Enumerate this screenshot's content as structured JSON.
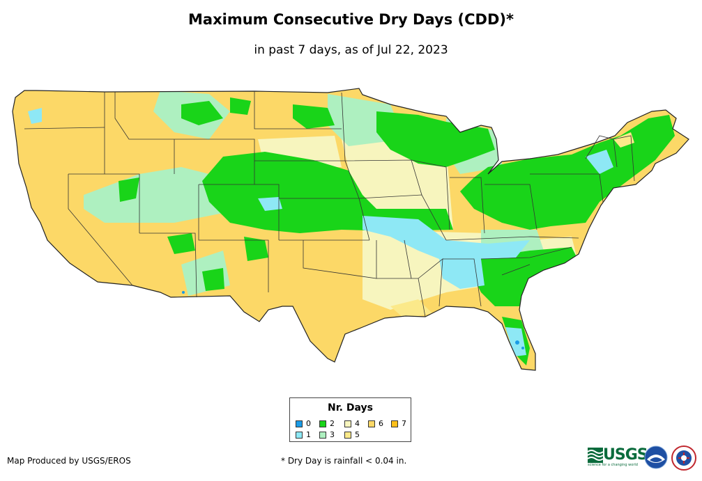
{
  "title": "Maximum Consecutive Dry Days (CDD)*",
  "subtitle": "in past 7 days, as of Jul 22, 2023",
  "legend": {
    "title": "Nr. Days",
    "items": [
      {
        "label": "0",
        "color": "#1a9be6"
      },
      {
        "label": "1",
        "color": "#8ee8f5"
      },
      {
        "label": "2",
        "color": "#19d419"
      },
      {
        "label": "3",
        "color": "#aef0c0"
      },
      {
        "label": "4",
        "color": "#f7f5be"
      },
      {
        "label": "5",
        "color": "#fbe98a"
      },
      {
        "label": "6",
        "color": "#fcd867"
      },
      {
        "label": "7",
        "color": "#fcbf1a"
      }
    ]
  },
  "producer": "Map Produced by USGS/EROS",
  "footnote": "* Dry Day is rainfall < 0.04 in.",
  "logos": {
    "usgs_text": "USGS",
    "usgs_tagline": "science for a changing world",
    "noaa_icon": "noaa-logo-icon",
    "nws_icon": "nws-logo-icon"
  }
}
